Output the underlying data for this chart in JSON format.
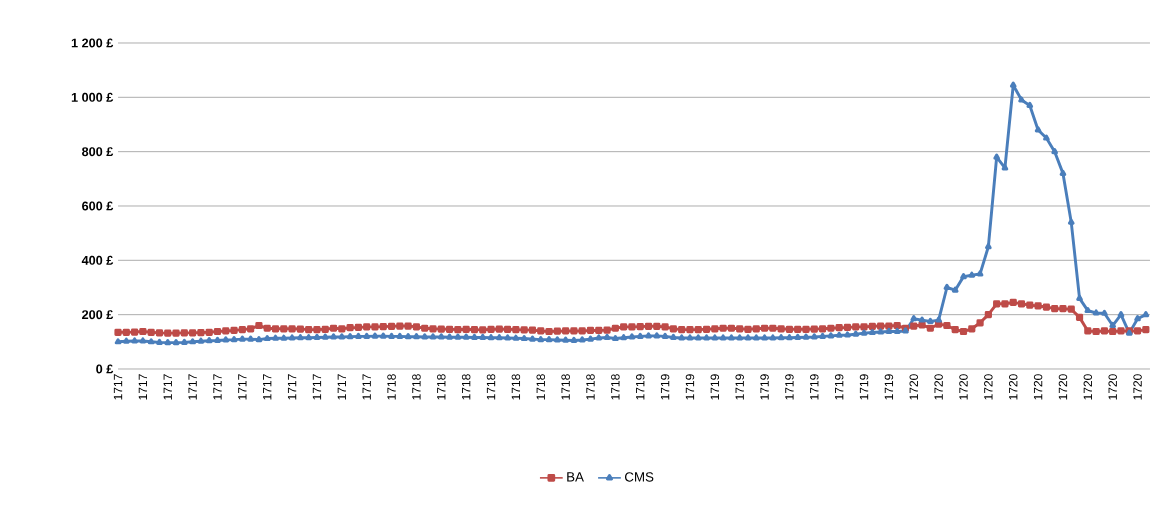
{
  "chart_data": {
    "type": "line",
    "categories": [
      "1717",
      null,
      null,
      "1717",
      null,
      null,
      "1717",
      null,
      null,
      "1717",
      null,
      null,
      "1717",
      null,
      null,
      "1717",
      null,
      null,
      "1717",
      null,
      null,
      "1717",
      null,
      null,
      "1717",
      null,
      null,
      "1717",
      null,
      null,
      "1717",
      null,
      null,
      "1718",
      null,
      null,
      "1718",
      null,
      null,
      "1718",
      null,
      null,
      "1718",
      null,
      null,
      "1718",
      null,
      null,
      "1718",
      null,
      null,
      "1718",
      null,
      null,
      "1718",
      null,
      null,
      "1718",
      null,
      null,
      "1718",
      null,
      null,
      "1719",
      null,
      null,
      "1719",
      null,
      null,
      "1719",
      null,
      null,
      "1719",
      null,
      null,
      "1719",
      null,
      null,
      "1719",
      null,
      null,
      "1719",
      null,
      null,
      "1719",
      null,
      null,
      "1719",
      null,
      null,
      "1719",
      null,
      null,
      "1719",
      null,
      null,
      "1720",
      null,
      null,
      "1720",
      null,
      null,
      "1720",
      null,
      null,
      "1720",
      null,
      null,
      "1720",
      null,
      null,
      "1720",
      null,
      null,
      "1720",
      null,
      null,
      "1720",
      null,
      null,
      "1720",
      null,
      null,
      "1720",
      null
    ],
    "series": [
      {
        "name": "BA",
        "color": "#be4b48",
        "marker": "square",
        "values": [
          135,
          135,
          136,
          138,
          135,
          133,
          132,
          132,
          133,
          133,
          134,
          135,
          138,
          140,
          142,
          145,
          148,
          160,
          150,
          148,
          148,
          148,
          147,
          145,
          145,
          146,
          150,
          148,
          152,
          153,
          155,
          155,
          156,
          157,
          158,
          158,
          155,
          150,
          148,
          147,
          146,
          145,
          146,
          145,
          144,
          146,
          147,
          146,
          145,
          144,
          143,
          140,
          138,
          139,
          140,
          140,
          140,
          142,
          142,
          143,
          150,
          155,
          155,
          156,
          157,
          157,
          155,
          148,
          145,
          145,
          145,
          146,
          148,
          150,
          150,
          148,
          146,
          148,
          150,
          150,
          148,
          146,
          146,
          146,
          147,
          148,
          150,
          152,
          153,
          155,
          155,
          157,
          158,
          158,
          160,
          150,
          158,
          162,
          150,
          165,
          160,
          145,
          138,
          148,
          170,
          200,
          240,
          240,
          245,
          240,
          235,
          232,
          228,
          222,
          222,
          220,
          190,
          140,
          138,
          140,
          138,
          140,
          140,
          140,
          145
        ]
      },
      {
        "name": "CMS",
        "color": "#4a7ebb",
        "marker": "triangle",
        "values": [
          100,
          102,
          103,
          103,
          100,
          98,
          97,
          97,
          98,
          100,
          102,
          104,
          105,
          107,
          108,
          110,
          110,
          108,
          112,
          113,
          113,
          114,
          115,
          115,
          116,
          117,
          118,
          118,
          119,
          120,
          120,
          121,
          121,
          120,
          120,
          119,
          119,
          118,
          118,
          118,
          117,
          117,
          117,
          116,
          116,
          115,
          115,
          114,
          113,
          112,
          110,
          108,
          108,
          107,
          106,
          105,
          107,
          110,
          114,
          116,
          112,
          115,
          118,
          120,
          122,
          122,
          120,
          116,
          114,
          114,
          114,
          114,
          114,
          114,
          114,
          114,
          114,
          114,
          114,
          114,
          115,
          115,
          116,
          117,
          118,
          120,
          122,
          124,
          125,
          128,
          132,
          134,
          136,
          138,
          138,
          140,
          185,
          180,
          175,
          180,
          300,
          290,
          340,
          345,
          350,
          450,
          780,
          740,
          1045,
          990,
          970,
          880,
          850,
          800,
          720,
          540,
          260,
          215,
          206,
          205,
          160,
          200,
          132,
          185,
          200
        ]
      }
    ],
    "ylim": [
      0,
      1200
    ],
    "yticks": [
      {
        "value": 0,
        "label": "0 £"
      },
      {
        "value": 200,
        "label": "200 £"
      },
      {
        "value": 400,
        "label": "400 £"
      },
      {
        "value": 600,
        "label": "600 £"
      },
      {
        "value": 800,
        "label": "800 £"
      },
      {
        "value": 1000,
        "label": "1 000 £"
      },
      {
        "value": 1200,
        "label": "1 200 £"
      }
    ],
    "grid": "y",
    "legend": "bottom"
  }
}
